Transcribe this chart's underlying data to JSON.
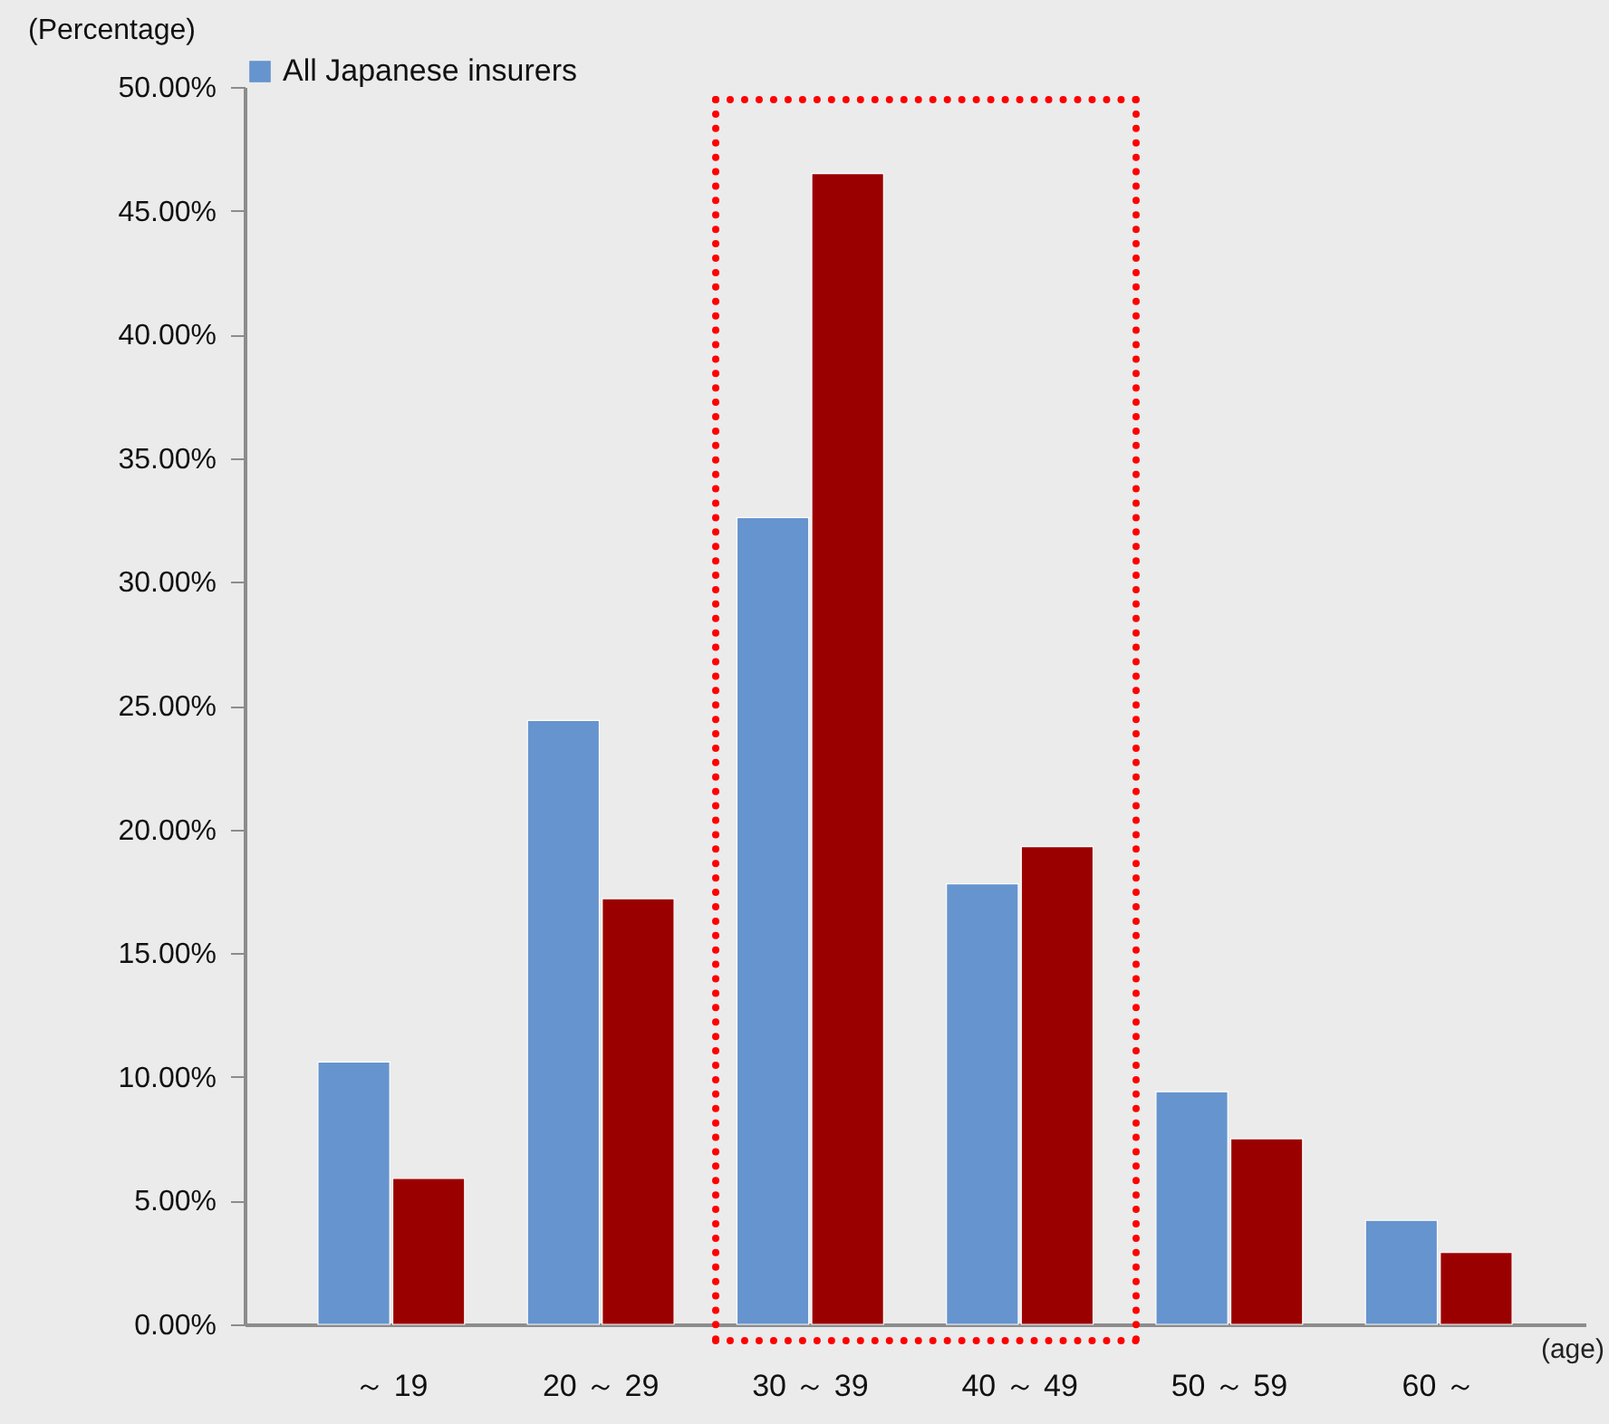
{
  "chart_data": {
    "type": "bar",
    "ylabel": "(Percentage)",
    "xlabel": "(age)",
    "categories": [
      "～ 19",
      "20 ～ 29",
      "30 ～ 39",
      "40 ～ 49",
      "50 ～ 59",
      "60 ～"
    ],
    "series": [
      {
        "name": "All Japanese insurers",
        "color": "#6694ce",
        "values": [
          10.6,
          24.4,
          32.6,
          17.8,
          9.4,
          4.2
        ]
      },
      {
        "color": "#9b0000",
        "values": [
          5.9,
          17.2,
          46.5,
          19.3,
          7.5,
          2.9
        ]
      }
    ],
    "ylim": [
      0,
      50
    ],
    "yticks": [
      {
        "value": 0,
        "label": "0.00%"
      },
      {
        "value": 5,
        "label": "5.00%"
      },
      {
        "value": 10,
        "label": "10.00%"
      },
      {
        "value": 15,
        "label": "15.00%"
      },
      {
        "value": 20,
        "label": "20.00%"
      },
      {
        "value": 25,
        "label": "25.00%"
      },
      {
        "value": 30,
        "label": "30.00%"
      },
      {
        "value": 35,
        "label": "35.00%"
      },
      {
        "value": 40,
        "label": "40.00%"
      },
      {
        "value": 45,
        "label": "45.00%"
      },
      {
        "value": 50,
        "label": "50.00%"
      }
    ],
    "grid": false,
    "legend": "top"
  }
}
